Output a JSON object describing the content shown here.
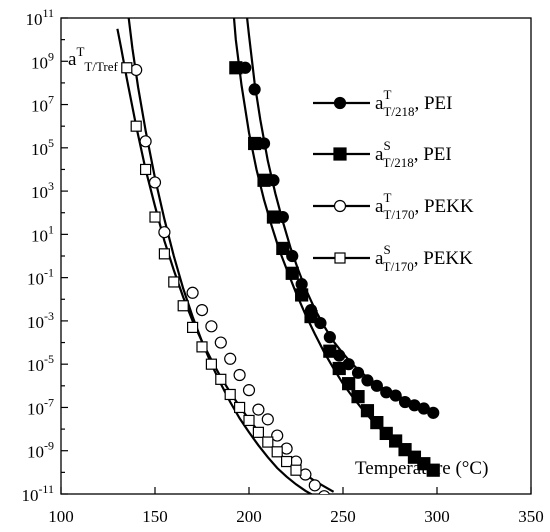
{
  "chart_data": {
    "type": "scatter",
    "title": "",
    "xlabel": "Temperature (°C)",
    "ylabel": "",
    "y_scale": "log",
    "xlim": [
      100,
      350
    ],
    "ylim_exp": [
      -11,
      11
    ],
    "x_ticks": [
      100,
      150,
      200,
      250,
      300,
      350
    ],
    "y_ticks_exp": [
      -11,
      -9,
      -7,
      -5,
      -3,
      -1,
      1,
      3,
      5,
      7,
      9,
      11
    ],
    "y_tick_base": "10",
    "annotation": {
      "main": "a",
      "sup": "T",
      "sub": "T/Tref"
    },
    "grid": false,
    "legend_position": "right",
    "series": [
      {
        "name": "PEI",
        "legend_main": "a",
        "legend_sup": "T",
        "legend_sub": "T/218",
        "legend_suffix": ", PEI",
        "marker": "filled-circle",
        "points_log10": [
          [
            198,
            8.7
          ],
          [
            203,
            7.7
          ],
          [
            208,
            5.2
          ],
          [
            213,
            3.5
          ],
          [
            218,
            1.8
          ],
          [
            223,
            0.0
          ],
          [
            228,
            -1.3
          ],
          [
            233,
            -2.5
          ],
          [
            238,
            -3.1
          ],
          [
            243,
            -3.75
          ],
          [
            248,
            -4.6
          ],
          [
            253,
            -5.0
          ],
          [
            258,
            -5.4
          ],
          [
            263,
            -5.75
          ],
          [
            268,
            -6.0
          ],
          [
            273,
            -6.3
          ],
          [
            278,
            -6.45
          ],
          [
            283,
            -6.75
          ],
          [
            288,
            -6.9
          ],
          [
            293,
            -7.05
          ],
          [
            298,
            -7.25
          ]
        ],
        "fit_log10": [
          [
            199,
            11
          ],
          [
            200,
            10.2
          ],
          [
            203,
            8.0
          ],
          [
            206,
            6.3
          ],
          [
            210,
            4.4
          ],
          [
            214,
            2.9
          ],
          [
            218,
            1.6
          ],
          [
            222,
            0.4
          ],
          [
            226,
            -0.6
          ],
          [
            230,
            -1.5
          ],
          [
            235,
            -2.45
          ],
          [
            240,
            -3.25
          ],
          [
            245,
            -3.95
          ],
          [
            250,
            -4.5
          ],
          [
            255,
            -5.0
          ],
          [
            260,
            -5.4
          ],
          [
            265,
            -5.75
          ],
          [
            270,
            -6.05
          ],
          [
            275,
            -6.3
          ],
          [
            280,
            -6.5
          ],
          [
            285,
            -6.7
          ],
          [
            290,
            -6.9
          ],
          [
            295,
            -7.05
          ],
          [
            300,
            -7.2
          ]
        ]
      },
      {
        "name": "PEI",
        "legend_main": "a",
        "legend_sup": "S",
        "legend_sub": "T/218",
        "legend_suffix": ", PEI",
        "marker": "filled-square",
        "points_log10": [
          [
            193,
            8.7
          ],
          [
            203,
            5.2
          ],
          [
            208,
            3.5
          ],
          [
            213,
            1.8
          ],
          [
            218,
            0.35
          ],
          [
            223,
            -0.8
          ],
          [
            228,
            -1.8
          ],
          [
            233,
            -2.8
          ],
          [
            243,
            -4.4
          ],
          [
            248,
            -5.2
          ],
          [
            253,
            -5.9
          ],
          [
            258,
            -6.5
          ],
          [
            263,
            -7.15
          ],
          [
            268,
            -7.7
          ],
          [
            273,
            -8.2
          ],
          [
            278,
            -8.55
          ],
          [
            283,
            -8.95
          ],
          [
            288,
            -9.3
          ],
          [
            293,
            -9.6
          ],
          [
            298,
            -9.9
          ]
        ],
        "fit_log10": [
          [
            192,
            11
          ],
          [
            193,
            10.0
          ],
          [
            196,
            7.9
          ],
          [
            200,
            5.7
          ],
          [
            204,
            4.0
          ],
          [
            208,
            2.6
          ],
          [
            212,
            1.4
          ],
          [
            216,
            0.3
          ],
          [
            220,
            -0.6
          ],
          [
            225,
            -1.7
          ],
          [
            230,
            -2.7
          ],
          [
            235,
            -3.6
          ],
          [
            240,
            -4.45
          ],
          [
            245,
            -5.2
          ],
          [
            250,
            -5.9
          ],
          [
            255,
            -6.5
          ],
          [
            260,
            -7.05
          ],
          [
            265,
            -7.55
          ],
          [
            270,
            -8.0
          ],
          [
            275,
            -8.4
          ],
          [
            280,
            -8.75
          ],
          [
            285,
            -9.05
          ],
          [
            290,
            -9.35
          ],
          [
            295,
            -9.6
          ],
          [
            300,
            -9.85
          ]
        ]
      },
      {
        "name": "PEKK",
        "legend_main": "a",
        "legend_sup": "T",
        "legend_sub": "T/170",
        "legend_suffix": ", PEKK",
        "marker": "open-circle",
        "points_log10": [
          [
            140,
            8.6
          ],
          [
            145,
            5.3
          ],
          [
            150,
            3.4
          ],
          [
            155,
            1.1
          ],
          [
            170,
            -1.7
          ],
          [
            175,
            -2.5
          ],
          [
            180,
            -3.25
          ],
          [
            185,
            -4.0
          ],
          [
            190,
            -4.75
          ],
          [
            195,
            -5.5
          ],
          [
            200,
            -6.2
          ],
          [
            205,
            -7.1
          ],
          [
            210,
            -7.55
          ],
          [
            215,
            -8.3
          ],
          [
            220,
            -8.9
          ],
          [
            225,
            -9.5
          ],
          [
            230,
            -10.1
          ],
          [
            235,
            -10.6
          ],
          [
            240,
            -11.1
          ]
        ],
        "fit_log10": [
          [
            136,
            11
          ],
          [
            138,
            9.6
          ],
          [
            141,
            7.8
          ],
          [
            145,
            5.8
          ],
          [
            150,
            3.6
          ],
          [
            155,
            1.7
          ],
          [
            160,
            0.0
          ],
          [
            165,
            -1.5
          ],
          [
            170,
            -2.8
          ],
          [
            175,
            -3.95
          ],
          [
            180,
            -5.0
          ],
          [
            185,
            -5.9
          ],
          [
            190,
            -6.75
          ],
          [
            195,
            -7.5
          ],
          [
            200,
            -8.15
          ],
          [
            205,
            -8.75
          ],
          [
            210,
            -9.3
          ],
          [
            215,
            -9.8
          ],
          [
            220,
            -10.2
          ],
          [
            225,
            -10.55
          ],
          [
            230,
            -10.85
          ],
          [
            235,
            -11.1
          ],
          [
            240,
            -11.3
          ]
        ]
      },
      {
        "name": "PEKK",
        "legend_main": "a",
        "legend_sup": "S",
        "legend_sub": "T/170",
        "legend_suffix": ", PEKK",
        "marker": "open-square",
        "points_log10": [
          [
            135,
            8.7
          ],
          [
            140,
            6.0
          ],
          [
            145,
            4.0
          ],
          [
            150,
            1.8
          ],
          [
            155,
            0.1
          ],
          [
            160,
            -1.2
          ],
          [
            165,
            -2.3
          ],
          [
            170,
            -3.3
          ],
          [
            175,
            -4.2
          ],
          [
            180,
            -5.0
          ],
          [
            185,
            -5.7
          ],
          [
            190,
            -6.4
          ],
          [
            195,
            -7.0
          ],
          [
            200,
            -7.6
          ],
          [
            205,
            -8.15
          ],
          [
            210,
            -8.6
          ],
          [
            215,
            -9.05
          ],
          [
            220,
            -9.5
          ],
          [
            225,
            -9.9
          ]
        ],
        "fit_log10": [
          [
            130,
            10.5
          ],
          [
            132,
            9.6
          ],
          [
            135,
            8.2
          ],
          [
            140,
            6.0
          ],
          [
            145,
            4.0
          ],
          [
            150,
            2.3
          ],
          [
            155,
            0.7
          ],
          [
            160,
            -0.65
          ],
          [
            165,
            -1.9
          ],
          [
            170,
            -3.0
          ],
          [
            175,
            -3.95
          ],
          [
            180,
            -4.8
          ],
          [
            185,
            -5.6
          ],
          [
            190,
            -6.3
          ],
          [
            195,
            -6.95
          ],
          [
            200,
            -7.55
          ],
          [
            205,
            -8.1
          ],
          [
            210,
            -8.6
          ],
          [
            215,
            -9.05
          ],
          [
            220,
            -9.45
          ],
          [
            225,
            -9.8
          ],
          [
            230,
            -10.1
          ],
          [
            235,
            -10.4
          ],
          [
            240,
            -10.65
          ],
          [
            245,
            -10.9
          ]
        ]
      }
    ]
  }
}
